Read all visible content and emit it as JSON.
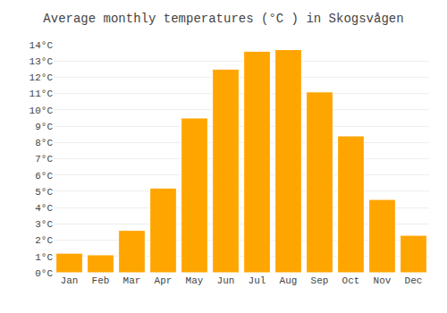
{
  "chart_data": {
    "type": "bar",
    "title": "Average monthly temperatures (°C ) in Skogsvågen",
    "categories": [
      "Jan",
      "Feb",
      "Mar",
      "Apr",
      "May",
      "Jun",
      "Jul",
      "Aug",
      "Sep",
      "Oct",
      "Nov",
      "Dec"
    ],
    "values": [
      1.2,
      1.1,
      2.6,
      5.2,
      9.5,
      12.5,
      13.6,
      13.7,
      11.1,
      8.4,
      4.5,
      2.3
    ],
    "color": "#FFA500",
    "ylim": [
      0,
      14
    ],
    "yticks": [
      {
        "value": 0,
        "label": "0°C"
      },
      {
        "value": 1,
        "label": "1°C"
      },
      {
        "value": 2,
        "label": "2°C"
      },
      {
        "value": 3,
        "label": "3°C"
      },
      {
        "value": 4,
        "label": "4°C"
      },
      {
        "value": 5,
        "label": "5°C"
      },
      {
        "value": 6,
        "label": "6°C"
      },
      {
        "value": 7,
        "label": "7°C"
      },
      {
        "value": 8,
        "label": "8°C"
      },
      {
        "value": 9,
        "label": "9°C"
      },
      {
        "value": 10,
        "label": "10°C"
      },
      {
        "value": 11,
        "label": "11°C"
      },
      {
        "value": 12,
        "label": "12°C"
      },
      {
        "value": 13,
        "label": "13°C"
      },
      {
        "value": 14,
        "label": "14°C"
      }
    ],
    "grid": true
  }
}
